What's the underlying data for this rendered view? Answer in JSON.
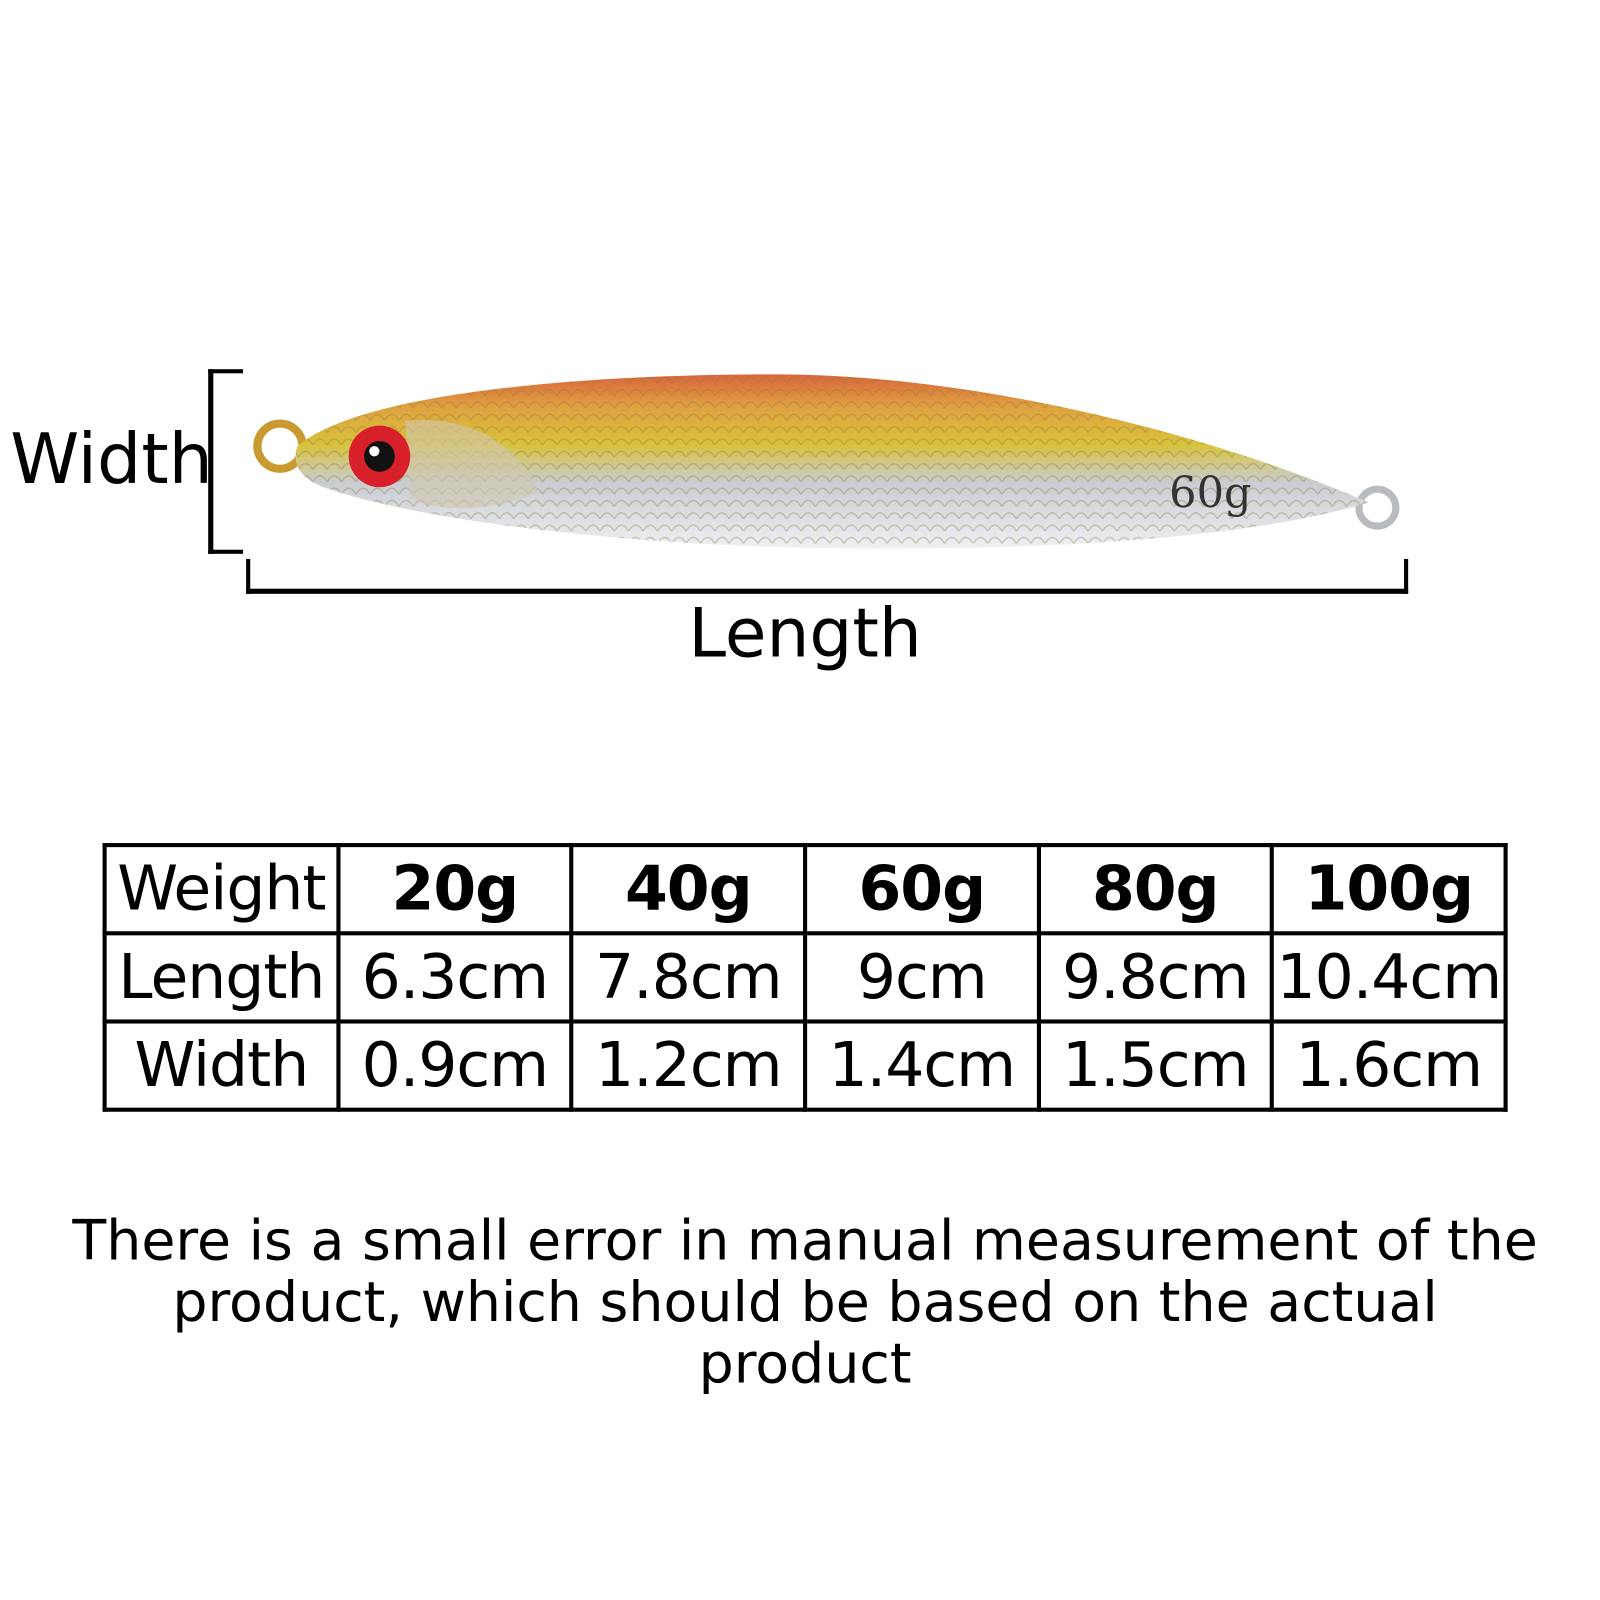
{
  "diagram": {
    "width_label": "Width",
    "length_label": "Length",
    "lure_marking": "60g",
    "lure_colors": {
      "back": "#d9643c",
      "body": "#d8c23a",
      "belly": "#c9cdd2",
      "eye": "#d8202a"
    }
  },
  "table": {
    "rows": [
      {
        "label": "Weight",
        "values": [
          "20g",
          "40g",
          "60g",
          "80g",
          "100g"
        ]
      },
      {
        "label": "Length",
        "values": [
          "6.3cm",
          "7.8cm",
          "9cm",
          "9.8cm",
          "10.4cm"
        ]
      },
      {
        "label": "Width",
        "values": [
          "0.9cm",
          "1.2cm",
          "1.4cm",
          "1.5cm",
          "1.6cm"
        ]
      }
    ]
  },
  "note": {
    "line1": "There is a small error in manual measurement of the",
    "line2": "product, which should be based on the actual product"
  }
}
